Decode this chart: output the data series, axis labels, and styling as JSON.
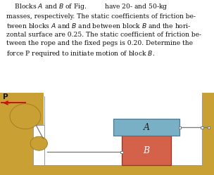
{
  "ground_color": "#c8a033",
  "ground_edge_color": "#a07820",
  "block_A_color": "#7ab0c5",
  "block_A_edge": "#4a7a95",
  "block_B_color": "#d4614a",
  "block_B_edge": "#a03020",
  "rope_color": "#777777",
  "arrow_color": "#cc1111",
  "text_color": "#111111",
  "label_A": "A",
  "label_B": "B",
  "label_P": "P",
  "text_block": "    Blocks $A$ and $B$ of Fig.         have 20- and 50-kg\nmasses, respectively. The static coefficients of friction be-\ntween blocks $A$ and $B$ and between block $B$ and the hori-\nzontal surface are 0.25. The static coefficient of friction be-\ntween the rope and the fixed pegs is 0.20. Determine the\nforce P required to initiate motion of block $B$.",
  "text_fontsize": 6.6,
  "text_linespacing": 1.42
}
